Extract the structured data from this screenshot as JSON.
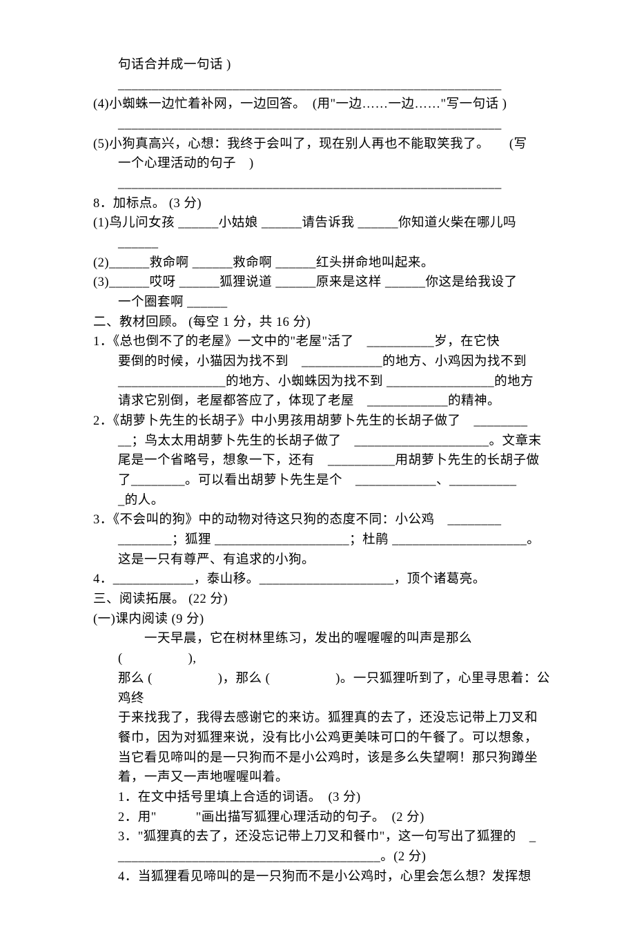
{
  "text_color": "#000000",
  "background_color": "#ffffff",
  "font_family": "SimSun",
  "base_fontsize": 18.5,
  "lines": {
    "l01": "句话合并成一句话 )",
    "l02_blank": "_________________________________________________________",
    "l03": "(4)小蜘蛛一边忙着补网，一边回答。　(用\"一边……一边……\"写一句话 )",
    "l03b_blank": "_________________________________________________________",
    "l04a": "(5)小狗真高兴，心想：我终于会叫了，现在别人再也不能取笑我了。　　(写",
    "l04b": "一个心理活动的句子　)",
    "l04c_blank": "_________________________________________________________",
    "l05": "8．加标点。 (3 分)",
    "l06a": "(1)鸟儿问女孩 ______小姑娘 ______请告诉我 ______你知道火柴在哪儿吗",
    "l06b": "______",
    "l07": "(2)______救命啊 ______救命啊 ______红头拼命地叫起来。",
    "l08a": "(3)______哎呀 ______狐狸说道 ______原来是这样 ______你这是给我设了",
    "l08b": "一个圈套啊 ______",
    "l09": "二、教材回顾。 (每空 1 分，共 16 分)",
    "l10a": "1．《总也倒不了的老屋》一文中的\"老屋\"活了　__________岁，在它快",
    "l10b": "要倒的时候，小猫因为找不到　____________的地方、小鸡因为找不到",
    "l10c": "________________的地方、小蜘蛛因为找不到 ________________的地方",
    "l10d": "请求它别倒，老屋都答应了，体现了老屋　____________的精神。",
    "l11a": "2．《胡萝卜先生的长胡子》中小男孩用胡萝卜先生的长胡子做了　________",
    "l11b": "__；鸟太太用胡萝卜先生的长胡子做了　____________________。文章末",
    "l11c": "尾是一个省略号，想象一下，还有　__________用胡萝卜先生的长胡子做",
    "l11d": "了________。可以看出胡萝卜先生是个　____________、__________",
    "l11e": "_的人。",
    "l12a": "3．《不会叫的狗》中的动物对待这只狗的态度不同：小公鸡　________",
    "l12b": "________；狐狸 ____________________；杜鹃 ____________________。",
    "l12c": "这是一只有尊严、有追求的小狗。",
    "l13": "4．____________，泰山移。____________________，顶个诸葛亮。",
    "l14": "三、阅读拓展。 (22 分)",
    "l15": "(一)课内阅读 (9 分)",
    "l16a": "　　一天早晨，它在树林里练习，发出的喔喔喔的叫声是那么　(　　　　　),",
    "l16b": "那么 (　　　　　)，那么 (　　　　　)。一只狐狸听到了，心里寻思着：公鸡终",
    "l16c": "于来找我了，我得去感谢它的来访。狐狸真的去了，还没忘记带上刀叉和",
    "l16d": "餐巾，因为对狐狸来说，没有比小公鸡更美味可口的午餐了。可以想象，",
    "l16e": "当它看见啼叫的是一只狗而不是小公鸡时，该是多么失望啊！那只狗蹲坐",
    "l16f": "着，一声又一声地喔喔叫着。",
    "l17": "1．在文中括号里填上合适的词语。　(3 分)",
    "l18": "2．用\"　　　\"画出描写狐狸心理活动的句子。　(2 分)",
    "l19a": "3．\"狐狸真的去了，还没忘记带上刀叉和餐巾\"，这一句写出了狐狸的　_",
    "l19b": "_______________________________________。(2 分)",
    "l20": "4．当狐狸看见啼叫的是一只狗而不是小公鸡时，心里会怎么想？发挥想"
  }
}
